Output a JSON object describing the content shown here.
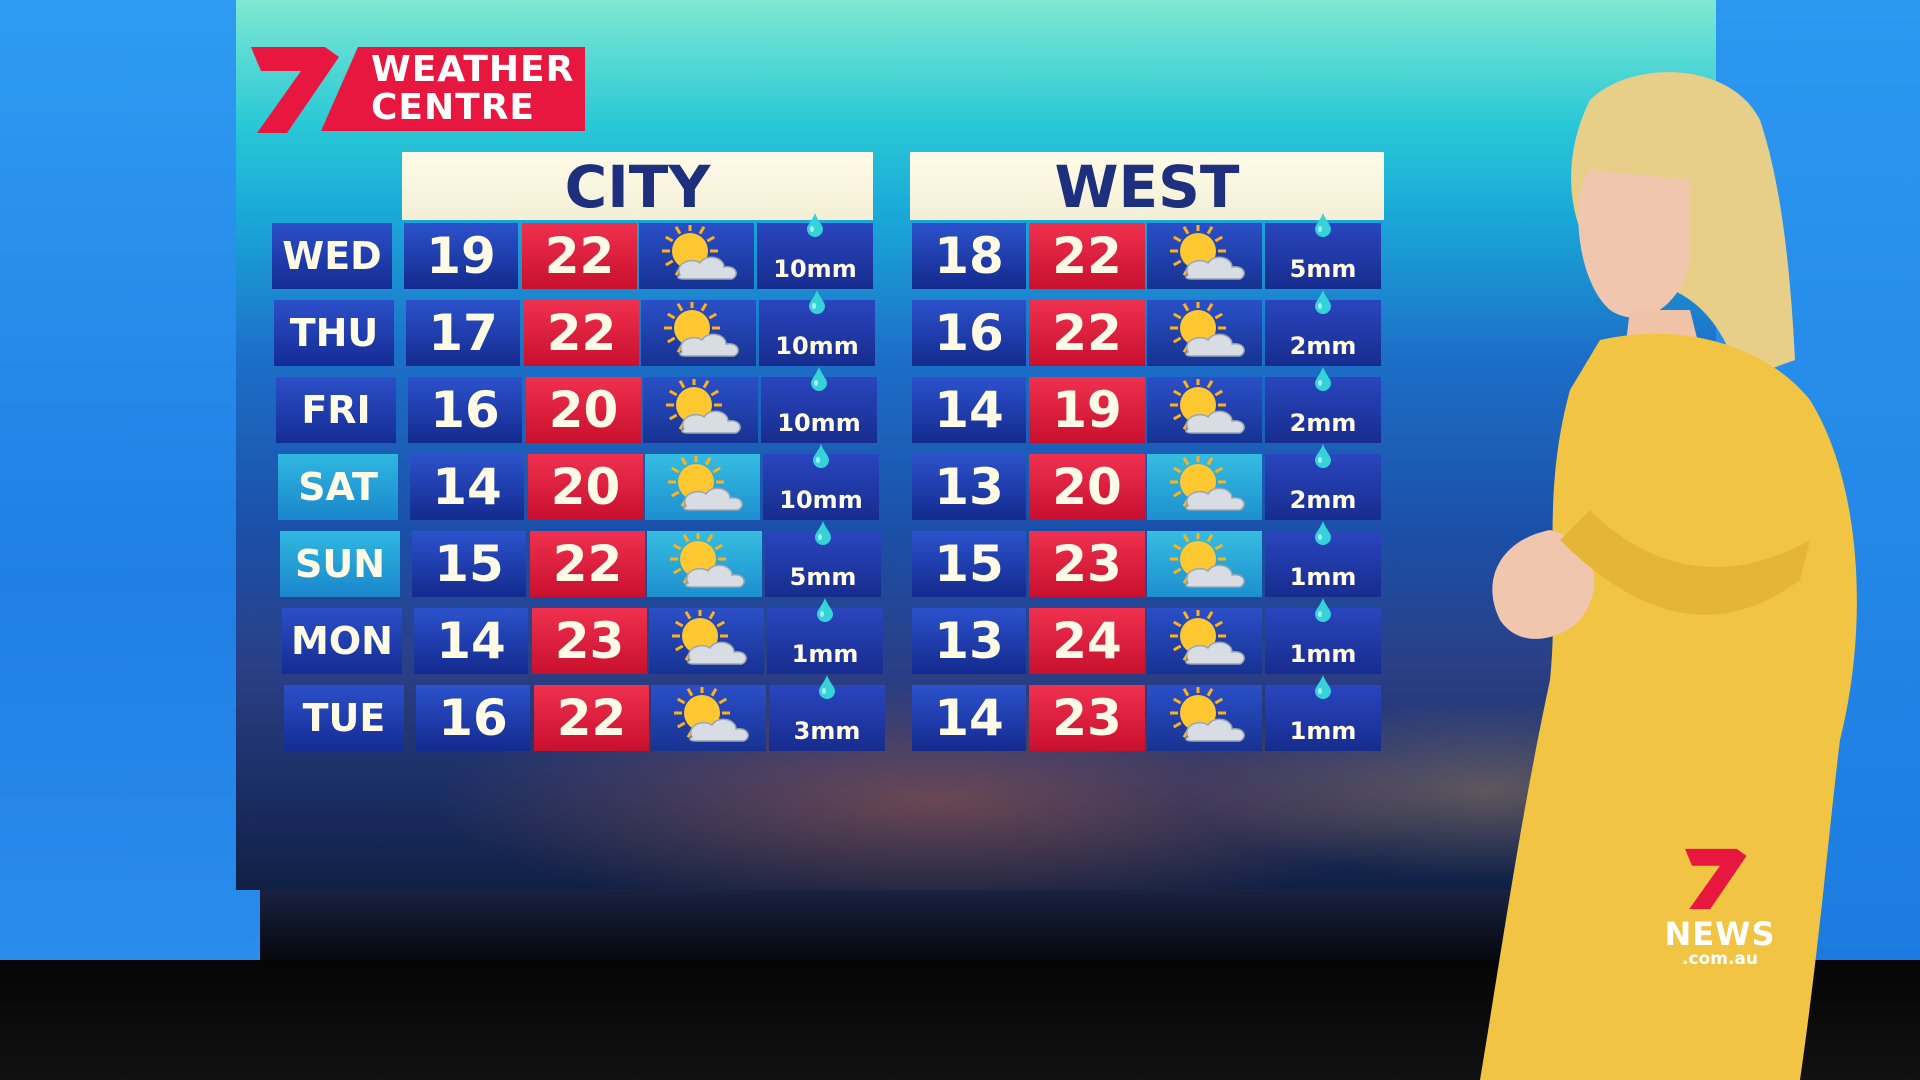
{
  "branding": {
    "logo_text_line1": "WEATHER",
    "logo_text_line2": "CENTRE",
    "network": "7",
    "news_logo": "NEWS",
    "news_domain": ".com.au",
    "accent_red": "#e8173f",
    "navy": "#1d2f7d"
  },
  "forecast": {
    "days": [
      "WED",
      "THU",
      "FRI",
      "SAT",
      "SUN",
      "MON",
      "TUE"
    ],
    "icon": "partly-cloudy-icon",
    "rain_icon": "raindrop-icon",
    "panels": [
      {
        "title": "CITY",
        "rows": [
          {
            "low": "19",
            "high": "22",
            "rain": "10mm"
          },
          {
            "low": "17",
            "high": "22",
            "rain": "10mm"
          },
          {
            "low": "16",
            "high": "20",
            "rain": "10mm"
          },
          {
            "low": "14",
            "high": "20",
            "rain": "10mm"
          },
          {
            "low": "15",
            "high": "22",
            "rain": "5mm"
          },
          {
            "low": "14",
            "high": "23",
            "rain": "1mm"
          },
          {
            "low": "16",
            "high": "22",
            "rain": "3mm"
          }
        ]
      },
      {
        "title": "WEST",
        "rows": [
          {
            "low": "18",
            "high": "22",
            "rain": "5mm"
          },
          {
            "low": "16",
            "high": "22",
            "rain": "2mm"
          },
          {
            "low": "14",
            "high": "19",
            "rain": "2mm"
          },
          {
            "low": "13",
            "high": "20",
            "rain": "2mm"
          },
          {
            "low": "15",
            "high": "23",
            "rain": "1mm"
          },
          {
            "low": "13",
            "high": "24",
            "rain": "1mm"
          },
          {
            "low": "14",
            "high": "23",
            "rain": "1mm"
          }
        ]
      }
    ]
  }
}
